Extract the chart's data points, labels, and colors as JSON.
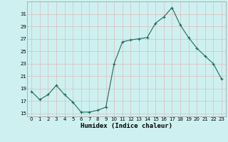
{
  "x": [
    0,
    1,
    2,
    3,
    4,
    5,
    6,
    7,
    8,
    9,
    10,
    11,
    12,
    13,
    14,
    15,
    16,
    17,
    18,
    19,
    20,
    21,
    22,
    23
  ],
  "y": [
    18.5,
    17.2,
    18.0,
    19.5,
    18.0,
    16.8,
    15.2,
    15.2,
    15.5,
    16.0,
    23.0,
    26.5,
    26.8,
    27.0,
    27.2,
    29.5,
    30.5,
    32.0,
    29.2,
    27.2,
    25.5,
    24.2,
    23.0,
    20.5
  ],
  "line_color": "#1a6b5a",
  "marker": "+",
  "marker_size": 3,
  "linewidth": 0.8,
  "xlabel": "Humidex (Indice chaleur)",
  "xlabel_fontsize": 6.5,
  "bg_color": "#cef0f0",
  "grid_color": "#ddbcbc",
  "yticks": [
    15,
    17,
    19,
    21,
    23,
    25,
    27,
    29,
    31
  ],
  "xticks": [
    0,
    1,
    2,
    3,
    4,
    5,
    6,
    7,
    8,
    9,
    10,
    11,
    12,
    13,
    14,
    15,
    16,
    17,
    18,
    19,
    20,
    21,
    22,
    23
  ],
  "ylim": [
    14.5,
    33.0
  ],
  "xlim": [
    -0.5,
    23.5
  ],
  "tick_fontsize": 5.0
}
